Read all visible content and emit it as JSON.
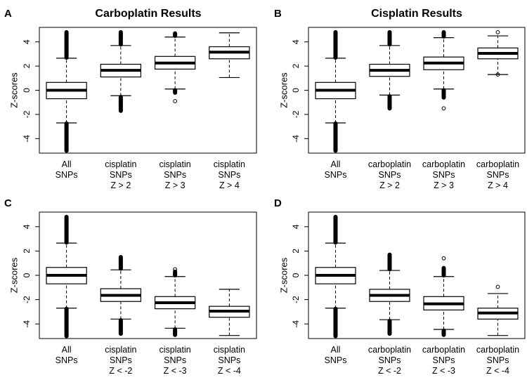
{
  "colors": {
    "stroke": "#000000",
    "box_fill": "#ffffff",
    "background": "#ffffff"
  },
  "chart_data": [
    {
      "type": "boxplot",
      "panel_letter": "A",
      "title": "Carboplatin Results",
      "ylabel": "Z-scores",
      "ylim": [
        -5.2,
        5.2
      ],
      "yticks": [
        -4,
        -2,
        0,
        2,
        4
      ],
      "categories": [
        [
          "All",
          "SNPs"
        ],
        [
          "cisplatin",
          "SNPs",
          "Z > 2"
        ],
        [
          "cisplatin",
          "SNPs",
          "Z > 3"
        ],
        [
          "cisplatin",
          "SNPs",
          "Z > 4"
        ]
      ],
      "boxes": [
        {
          "whisker_low": -2.7,
          "q1": -0.7,
          "median": 0.0,
          "q3": 0.65,
          "whisker_high": 2.65,
          "outliers_low_range": [
            -5.0,
            -2.75
          ],
          "outliers_high_range": [
            2.7,
            4.8
          ],
          "outliers": []
        },
        {
          "whisker_low": -0.45,
          "q1": 1.1,
          "median": 1.65,
          "q3": 2.15,
          "whisker_high": 3.7,
          "outliers_low_range": [
            -1.7,
            -0.55
          ],
          "outliers_high_range": [
            3.8,
            4.8
          ],
          "outliers": []
        },
        {
          "whisker_low": 0.1,
          "q1": 1.75,
          "median": 2.25,
          "q3": 2.8,
          "whisker_high": 4.4,
          "outliers_low_range": [
            -0.2,
            0.0
          ],
          "outliers_high_range": [
            4.5,
            4.7
          ],
          "outliers": [
            -0.9
          ]
        },
        {
          "whisker_low": 1.05,
          "q1": 2.6,
          "median": 3.15,
          "q3": 3.6,
          "whisker_high": 4.75,
          "outliers": []
        }
      ]
    },
    {
      "type": "boxplot",
      "panel_letter": "B",
      "title": "Cisplatin Results",
      "ylabel": "Z-scores",
      "ylim": [
        -5.2,
        5.2
      ],
      "yticks": [
        -4,
        -2,
        0,
        2,
        4
      ],
      "categories": [
        [
          "All",
          "SNPs"
        ],
        [
          "carboplatin",
          "SNPs",
          "Z > 2"
        ],
        [
          "carboplatin",
          "SNPs",
          "Z > 3"
        ],
        [
          "carboplatin",
          "SNPs",
          "Z > 4"
        ]
      ],
      "boxes": [
        {
          "whisker_low": -2.7,
          "q1": -0.7,
          "median": 0.0,
          "q3": 0.65,
          "whisker_high": 2.65,
          "outliers_low_range": [
            -5.0,
            -2.75
          ],
          "outliers_high_range": [
            2.7,
            4.8
          ],
          "outliers": []
        },
        {
          "whisker_low": -0.4,
          "q1": 1.15,
          "median": 1.65,
          "q3": 2.15,
          "whisker_high": 3.7,
          "outliers_low_range": [
            -1.5,
            -0.5
          ],
          "outliers_high_range": [
            3.8,
            4.8
          ],
          "outliers": []
        },
        {
          "whisker_low": 0.1,
          "q1": 1.7,
          "median": 2.25,
          "q3": 2.75,
          "whisker_high": 4.35,
          "outliers_low_range": [
            -0.6,
            0.0
          ],
          "outliers_high_range": [
            4.45,
            4.8
          ],
          "outliers": [
            -1.5
          ]
        },
        {
          "whisker_low": 1.3,
          "q1": 2.6,
          "median": 3.05,
          "q3": 3.5,
          "whisker_high": 4.5,
          "outliers": [
            1.3,
            4.8
          ]
        }
      ]
    },
    {
      "type": "boxplot",
      "panel_letter": "C",
      "title": "",
      "ylabel": "Z-scores",
      "ylim": [
        -5.2,
        5.2
      ],
      "yticks": [
        -4,
        -2,
        0,
        2,
        4
      ],
      "categories": [
        [
          "All",
          "SNPs"
        ],
        [
          "cisplatin",
          "SNPs",
          "Z < -2"
        ],
        [
          "cisplatin",
          "SNPs",
          "Z < -3"
        ],
        [
          "cisplatin",
          "SNPs",
          "Z < -4"
        ]
      ],
      "boxes": [
        {
          "whisker_low": -2.7,
          "q1": -0.7,
          "median": 0.0,
          "q3": 0.65,
          "whisker_high": 2.65,
          "outliers_low_range": [
            -5.0,
            -2.75
          ],
          "outliers_high_range": [
            2.7,
            4.8
          ],
          "outliers": []
        },
        {
          "whisker_low": -3.6,
          "q1": -2.15,
          "median": -1.65,
          "q3": -1.1,
          "whisker_high": 0.45,
          "outliers_low_range": [
            -4.8,
            -3.7
          ],
          "outliers_high_range": [
            0.55,
            1.5
          ],
          "outliers": []
        },
        {
          "whisker_low": -4.35,
          "q1": -2.75,
          "median": -2.25,
          "q3": -1.75,
          "whisker_high": -0.1,
          "outliers_low_range": [
            -4.9,
            -4.45
          ],
          "outliers_high_range": [
            0.0,
            0.3
          ],
          "outliers": [
            0.5
          ]
        },
        {
          "whisker_low": -4.95,
          "q1": -3.45,
          "median": -2.95,
          "q3": -2.55,
          "whisker_high": -1.15,
          "outliers": []
        }
      ]
    },
    {
      "type": "boxplot",
      "panel_letter": "D",
      "title": "",
      "ylabel": "Z-scores",
      "ylim": [
        -5.2,
        5.2
      ],
      "yticks": [
        -4,
        -2,
        0,
        2,
        4
      ],
      "categories": [
        [
          "All",
          "SNPs"
        ],
        [
          "carboplatin",
          "SNPs",
          "Z < -2"
        ],
        [
          "carboplatin",
          "SNPs",
          "Z < -3"
        ],
        [
          "carboplatin",
          "SNPs",
          "Z < -4"
        ]
      ],
      "boxes": [
        {
          "whisker_low": -2.7,
          "q1": -0.7,
          "median": 0.0,
          "q3": 0.65,
          "whisker_high": 2.65,
          "outliers_low_range": [
            -5.0,
            -2.75
          ],
          "outliers_high_range": [
            2.7,
            4.8
          ],
          "outliers": []
        },
        {
          "whisker_low": -3.65,
          "q1": -2.15,
          "median": -1.65,
          "q3": -1.15,
          "whisker_high": 0.4,
          "outliers_low_range": [
            -4.8,
            -3.75
          ],
          "outliers_high_range": [
            0.5,
            1.7
          ],
          "outliers": []
        },
        {
          "whisker_low": -4.45,
          "q1": -2.85,
          "median": -2.35,
          "q3": -1.75,
          "whisker_high": -0.1,
          "outliers_low_range": [
            -4.9,
            -4.55
          ],
          "outliers_high_range": [
            0.0,
            0.6
          ],
          "outliers": [
            1.4
          ]
        },
        {
          "whisker_low": -4.95,
          "q1": -3.6,
          "median": -3.1,
          "q3": -2.7,
          "whisker_high": -1.5,
          "outliers": [
            -0.95
          ]
        }
      ]
    }
  ]
}
